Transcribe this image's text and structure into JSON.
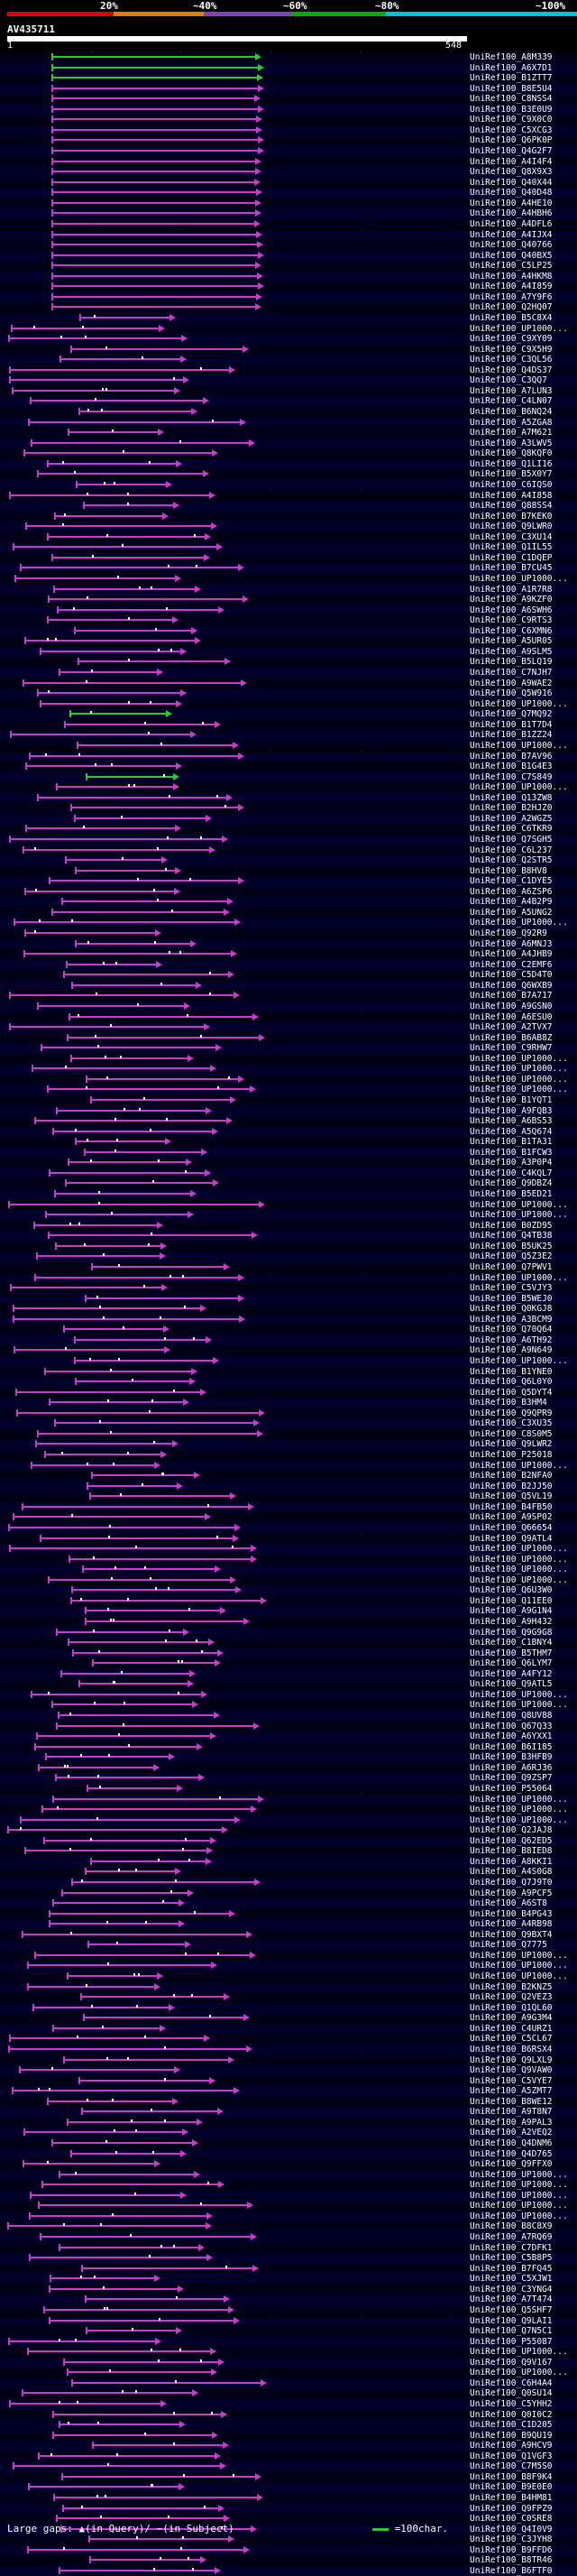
{
  "scale": {
    "labels": [
      "20%",
      "~40%",
      "~60%",
      "~80%",
      "~100%"
    ],
    "colors": [
      "#e00000",
      "#e08000",
      "#8040c0",
      "#00b000",
      "#00c0e0"
    ]
  },
  "query_id": "AV435711",
  "ruler": {
    "start": "1",
    "end": "548"
  },
  "legend": {
    "large_gaps_label": "Large gaps:",
    "query_mark": "▲(in Query)/",
    "subject_mark": "~(in Subject)",
    "green_line": "=100char."
  },
  "hits": [
    "UniRef100_A8M339",
    "UniRef100_A6X7D1",
    "UniRef100_B1ZTT7",
    "UniRef100_B8E5U4",
    "UniRef100_C8NSS4",
    "UniRef100_B3E0U9",
    "UniRef100_C9X0C0",
    "UniRef100_C5XCG3",
    "UniRef100_Q6PK0P",
    "UniRef100_Q4G2F7",
    "UniRef100_A4I4F4",
    "UniRef100_Q8X9X3",
    "UniRef100_Q40X44",
    "UniRef100_Q40D48",
    "UniRef100_A4HE10",
    "UniRef100_A4HBH6",
    "UniRef100_A4DFL6",
    "UniRef100_A4IJX4",
    "UniRef100_Q40766",
    "UniRef100_Q40BX5",
    "UniRef100_C5LP25",
    "UniRef100_A4HKM8",
    "UniRef100_A4I859",
    "UniRef100_A7Y9F6",
    "UniRef100_Q2HQ07",
    "UniRef100_B5C8X4",
    "UniRef100_UP1000...",
    "UniRef100_C9XY09",
    "UniRef100_C9X5H9",
    "UniRef100_C3QL56",
    "UniRef100_Q4DS37",
    "UniRef100_C3QQ7",
    "UniRef100_A7LUN3",
    "UniRef100_C4LN07",
    "UniRef100_B6NQ24",
    "UniRef100_A5ZGA8",
    "UniRef100_A7M621",
    "UniRef100_A3LWV5",
    "UniRef100_Q8KQF0",
    "UniRef100_Q1LI16",
    "UniRef100_B5X0Y7",
    "UniRef100_C6IQS0",
    "UniRef100_A4I858",
    "UniRef100_Q88SS4",
    "UniRef100_B7KEK0",
    "UniRef100_Q9LWR0",
    "UniRef100_C3XU14",
    "UniRef100_Q1IL55",
    "UniRef100_C1DQEP",
    "UniRef100_B7CU45",
    "UniRef100_UP1000...",
    "UniRef100_A1R7R8",
    "UniRef100_A9KZF0",
    "UniRef100_A6SWH6",
    "UniRef100_C9RTS3",
    "UniRef100_C6XMN6",
    "UniRef100_A5UR05",
    "UniRef100_A9SLM5",
    "UniRef100_B5LQ19",
    "UniRef100_C7NJH7",
    "UniRef100_A9WAE2",
    "UniRef100_Q5W916",
    "UniRef100_UP1000...",
    "UniRef100_Q7MQ92",
    "UniRef100_B1T7D4",
    "UniRef100_B1ZZ24",
    "UniRef100_UP1000...",
    "UniRef100_B7AV96",
    "UniRef100_B1G4E3",
    "UniRef100_C7S849",
    "UniRef100_UP1000...",
    "UniRef100_Q13ZW8",
    "UniRef100_B2HJZ0",
    "UniRef100_A2WGZ5",
    "UniRef100_C6TKR9",
    "UniRef100_Q7SGH5",
    "UniRef100_C6L237",
    "UniRef100_Q2STR5",
    "UniRef100_B8HV8",
    "UniRef100_C1DYE5",
    "UniRef100_A6ZSP6",
    "UniRef100_A4B2P9",
    "UniRef100_A5UNG2",
    "UniRef100_UP1000...",
    "UniRef100_Q92R9",
    "UniRef100_A6MNJ3",
    "UniRef100_A4JHB9",
    "UniRef100_C2EMF6",
    "UniRef100_C5D4T0",
    "UniRef100_Q6WXB9",
    "UniRef100_B7A717",
    "UniRef100_A9GSN0",
    "UniRef100_A6ESU0",
    "UniRef100_A2TVX7",
    "UniRef100_B6AB8Z",
    "UniRef100_C9RHW7",
    "UniRef100_UP1000...",
    "UniRef100_UP1000...",
    "UniRef100_UP1000...",
    "UniRef100_UP1000...",
    "UniRef100_B1YQT1",
    "UniRef100_A9FQB3",
    "UniRef100_A6BS53",
    "UniRef100_A5Q674",
    "UniRef100_B1TA31",
    "UniRef100_B1FCW3",
    "UniRef100_A3P0P4",
    "UniRef100_C4KQL7",
    "UniRef100_Q9DBZ4",
    "UniRef100_B5ED21",
    "UniRef100_UP1000...",
    "UniRef100_UP1000...",
    "UniRef100_B0ZD95",
    "UniRef100_Q4TB38",
    "UniRef100_B5UK25",
    "UniRef100_Q5Z3E2",
    "UniRef100_Q7PWV1",
    "UniRef100_UP1000...",
    "UniRef100_C5VJY3",
    "UniRef100_B5WEJ0",
    "UniRef100_Q0KGJ8",
    "UniRef100_A3BCM9",
    "UniRef100_Q70Q64",
    "UniRef100_A6TH92",
    "UniRef100_A9N649",
    "UniRef100_UP1000...",
    "UniRef100_B1YNE0",
    "UniRef100_Q6L0Y0",
    "UniRef100_Q5DYT4",
    "UniRef100_B3HM4",
    "UniRef100_Q9QPR9",
    "UniRef100_C3XU35",
    "UniRef100_C8S0M5",
    "UniRef100_Q9LWR2",
    "UniRef100_P25018",
    "UniRef100_UP1000...",
    "UniRef100_B2NFA0",
    "UniRef100_B2JJ50",
    "UniRef100_Q5VL19",
    "UniRef100_B4FB50",
    "UniRef100_A9SP02",
    "UniRef100_Q66654",
    "UniRef100_Q9ATL4",
    "UniRef100_UP1000...",
    "UniRef100_UP1000...",
    "UniRef100_UP1000...",
    "UniRef100_UP1000...",
    "UniRef100_Q6U3W0",
    "UniRef100_Q11EE0",
    "UniRef100_A9G1N4",
    "UniRef100_A9H432",
    "UniRef100_Q9G9G8",
    "UniRef100_C1BNY4",
    "UniRef100_B5THM7",
    "UniRef100_Q6LYM7",
    "UniRef100_A4FY12",
    "UniRef100_Q9ATL5",
    "UniRef100_UP1000...",
    "UniRef100_UP1000...",
    "UniRef100_Q8UV88",
    "UniRef100_Q67Q33",
    "UniRef100_A6YXX1",
    "UniRef100_B6I185",
    "UniRef100_B3HFB9",
    "UniRef100_A6RJ36",
    "UniRef100_Q9ZSP7",
    "UniRef100_P55064",
    "UniRef100_UP1000...",
    "UniRef100_UP1000...",
    "UniRef100_UP1000...",
    "UniRef100_Q2JAJ8",
    "UniRef100_Q62ED5",
    "UniRef100_B8IED8",
    "UniRef100_A8KKI1",
    "UniRef100_A4S0G8",
    "UniRef100_Q7J9T0",
    "UniRef100_A9PCF5",
    "UniRef100_A6ST8",
    "UniRef100_B4PG43",
    "UniRef100_A4RB98",
    "UniRef100_Q9BXT4",
    "UniRef100_Q7775",
    "UniRef100_UP1000...",
    "UniRef100_UP1000...",
    "UniRef100_UP1000...",
    "UniRef100_B2KNZ5",
    "UniRef100_Q2VEZ3",
    "UniRef100_Q1QL60",
    "UniRef100_A9G3M4",
    "UniRef100_C4URZ1",
    "UniRef100_C5CL67",
    "UniRef100_B6RSX4",
    "UniRef100_Q9LXL9",
    "UniRef100_Q9VAW0",
    "UniRef100_C5VYE7",
    "UniRef100_A5ZMT7",
    "UniRef100_B8WE12",
    "UniRef100_A9T8N7",
    "UniRef100_A9PAL3",
    "UniRef100_A2VEQ2",
    "UniRef100_Q4DNM6",
    "UniRef100_Q4D765",
    "UniRef100_Q9FFX0",
    "UniRef100_UP1000...",
    "UniRef100_UP1000...",
    "UniRef100_UP1000...",
    "UniRef100_UP1000...",
    "UniRef100_UP1000...",
    "UniRef100_B8C8X9",
    "UniRef100_A7RQ69",
    "UniRef100_C7DFK1",
    "UniRef100_C5B8P5",
    "UniRef100_B7FQ45",
    "UniRef100_C5XJW1",
    "UniRef100_C3YNG4",
    "UniRef100_A7T474",
    "UniRef100_Q5SHF7",
    "UniRef100_Q9LAI1",
    "UniRef100_Q7N5C1",
    "UniRef100_P55087",
    "UniRef100_UP1000...",
    "UniRef100_Q9V167",
    "UniRef100_UP1000...",
    "UniRef100_C6H4A4",
    "UniRef100_Q0SU14",
    "UniRef100_C5YHH2",
    "UniRef100_Q0I0C2",
    "UniRef100_C1D205",
    "UniRef100_B9QU19",
    "UniRef100_A9HCV9",
    "UniRef100_Q1VGF3",
    "UniRef100_C7M5S0",
    "UniRef100_B8F9K4",
    "UniRef100_B9E0E0",
    "UniRef100_B4HM81",
    "UniRef100_Q9FPZ9",
    "UniRef100_C0SRE8",
    "UniRef100_Q4I0V9",
    "UniRef100_C3JYH8",
    "UniRef100_B9FFD6",
    "UniRef100_B8TR46",
    "UniRef100_B6FTF0"
  ]
}
